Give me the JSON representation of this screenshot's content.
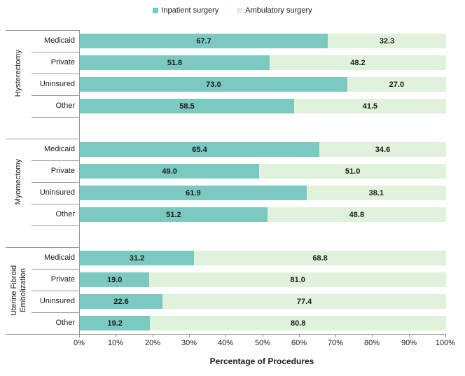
{
  "legend": {
    "items": [
      {
        "label": "Inpatient surgery",
        "color": "#7bc9c1"
      },
      {
        "label": "Ambulatory surgery",
        "color": "#e1f2dc"
      }
    ]
  },
  "axis": {
    "title": "Percentage of Procedures",
    "tick_labels": [
      "0%",
      "10%",
      "20%",
      "30%",
      "40%",
      "50%",
      "60%",
      "70%",
      "80%",
      "90%",
      "100%"
    ]
  },
  "chart_data": {
    "type": "bar",
    "orientation": "horizontal",
    "stacked": true,
    "grid": false,
    "legend_position": "top",
    "xlabel": "Percentage of Procedures",
    "ylabel": "",
    "xlim": [
      0,
      100
    ],
    "x_ticks": [
      "0%",
      "10%",
      "20%",
      "30%",
      "40%",
      "50%",
      "60%",
      "70%",
      "80%",
      "90%",
      "100%"
    ],
    "series_names": [
      "Inpatient surgery",
      "Ambulatory surgery"
    ],
    "colors": [
      "#7bc9c1",
      "#e1f2dc"
    ],
    "line_color": "#999999",
    "groups": [
      {
        "label": "Hysterectomy",
        "rows": [
          {
            "category": "Medicaid",
            "values": [
              67.7,
              32.3
            ]
          },
          {
            "category": "Private",
            "values": [
              51.8,
              48.2
            ]
          },
          {
            "category": "Uninsured",
            "values": [
              73.0,
              27.0
            ]
          },
          {
            "category": "Other",
            "values": [
              58.5,
              41.5
            ]
          }
        ]
      },
      {
        "label": "Myomectomy",
        "rows": [
          {
            "category": "Medicaid",
            "values": [
              65.4,
              34.6
            ]
          },
          {
            "category": "Private",
            "values": [
              49.0,
              51.0
            ]
          },
          {
            "category": "Uninsured",
            "values": [
              61.9,
              38.1
            ]
          },
          {
            "category": "Other",
            "values": [
              51.2,
              48.8
            ]
          }
        ]
      },
      {
        "label": "Uterine Fibroid Embolization",
        "rows": [
          {
            "category": "Medicaid",
            "values": [
              31.2,
              68.8
            ]
          },
          {
            "category": "Private",
            "values": [
              19.0,
              81.0
            ]
          },
          {
            "category": "Uninsured",
            "values": [
              22.6,
              77.4
            ]
          },
          {
            "category": "Other",
            "values": [
              19.2,
              80.8
            ]
          }
        ]
      }
    ]
  }
}
